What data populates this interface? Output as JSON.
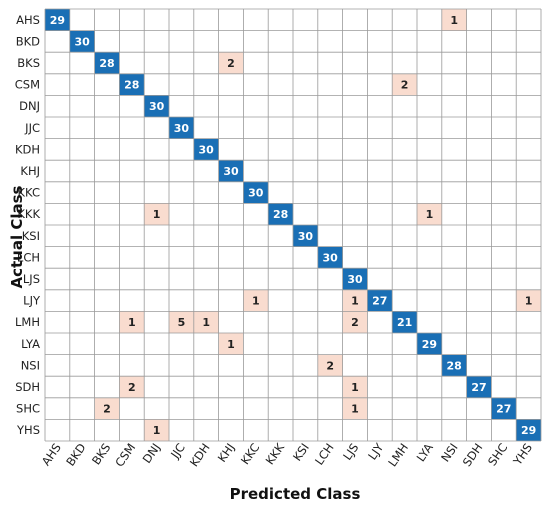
{
  "chart_data": {
    "type": "heatmap",
    "title": "",
    "xlabel": "Predicted Class",
    "ylabel": "Actual Class",
    "classes": [
      "AHS",
      "BKD",
      "BKS",
      "CSM",
      "DNJ",
      "JJC",
      "KDH",
      "KHJ",
      "KKC",
      "KKK",
      "KSI",
      "LCH",
      "LJS",
      "LJY",
      "LMH",
      "LYA",
      "NSI",
      "SDH",
      "SHC",
      "YHS"
    ],
    "matrix": [
      [
        29,
        0,
        0,
        0,
        0,
        0,
        0,
        0,
        0,
        0,
        0,
        0,
        0,
        0,
        0,
        0,
        1,
        0,
        0,
        0
      ],
      [
        0,
        30,
        0,
        0,
        0,
        0,
        0,
        0,
        0,
        0,
        0,
        0,
        0,
        0,
        0,
        0,
        0,
        0,
        0,
        0
      ],
      [
        0,
        0,
        28,
        0,
        0,
        0,
        0,
        2,
        0,
        0,
        0,
        0,
        0,
        0,
        0,
        0,
        0,
        0,
        0,
        0
      ],
      [
        0,
        0,
        0,
        28,
        0,
        0,
        0,
        0,
        0,
        0,
        0,
        0,
        0,
        0,
        2,
        0,
        0,
        0,
        0,
        0
      ],
      [
        0,
        0,
        0,
        0,
        30,
        0,
        0,
        0,
        0,
        0,
        0,
        0,
        0,
        0,
        0,
        0,
        0,
        0,
        0,
        0
      ],
      [
        0,
        0,
        0,
        0,
        0,
        30,
        0,
        0,
        0,
        0,
        0,
        0,
        0,
        0,
        0,
        0,
        0,
        0,
        0,
        0
      ],
      [
        0,
        0,
        0,
        0,
        0,
        0,
        30,
        0,
        0,
        0,
        0,
        0,
        0,
        0,
        0,
        0,
        0,
        0,
        0,
        0
      ],
      [
        0,
        0,
        0,
        0,
        0,
        0,
        0,
        30,
        0,
        0,
        0,
        0,
        0,
        0,
        0,
        0,
        0,
        0,
        0,
        0
      ],
      [
        0,
        0,
        0,
        0,
        0,
        0,
        0,
        0,
        30,
        0,
        0,
        0,
        0,
        0,
        0,
        0,
        0,
        0,
        0,
        0
      ],
      [
        0,
        0,
        0,
        0,
        1,
        0,
        0,
        0,
        0,
        28,
        0,
        0,
        0,
        0,
        0,
        1,
        0,
        0,
        0,
        0
      ],
      [
        0,
        0,
        0,
        0,
        0,
        0,
        0,
        0,
        0,
        0,
        30,
        0,
        0,
        0,
        0,
        0,
        0,
        0,
        0,
        0
      ],
      [
        0,
        0,
        0,
        0,
        0,
        0,
        0,
        0,
        0,
        0,
        0,
        30,
        0,
        0,
        0,
        0,
        0,
        0,
        0,
        0
      ],
      [
        0,
        0,
        0,
        0,
        0,
        0,
        0,
        0,
        0,
        0,
        0,
        0,
        30,
        0,
        0,
        0,
        0,
        0,
        0,
        0
      ],
      [
        0,
        0,
        0,
        0,
        0,
        0,
        0,
        0,
        1,
        0,
        0,
        0,
        1,
        27,
        0,
        0,
        0,
        0,
        0,
        1
      ],
      [
        0,
        0,
        0,
        1,
        0,
        5,
        1,
        0,
        0,
        0,
        0,
        0,
        2,
        0,
        21,
        0,
        0,
        0,
        0,
        0
      ],
      [
        0,
        0,
        0,
        0,
        0,
        0,
        0,
        1,
        0,
        0,
        0,
        0,
        0,
        0,
        0,
        29,
        0,
        0,
        0,
        0
      ],
      [
        0,
        0,
        0,
        0,
        0,
        0,
        0,
        0,
        0,
        0,
        0,
        2,
        0,
        0,
        0,
        0,
        28,
        0,
        0,
        0
      ],
      [
        0,
        0,
        0,
        2,
        0,
        0,
        0,
        0,
        0,
        0,
        0,
        0,
        1,
        0,
        0,
        0,
        0,
        27,
        0,
        0
      ],
      [
        0,
        0,
        2,
        0,
        0,
        0,
        0,
        0,
        0,
        0,
        0,
        0,
        1,
        0,
        0,
        0,
        0,
        0,
        27,
        0
      ],
      [
        0,
        0,
        0,
        0,
        1,
        0,
        0,
        0,
        0,
        0,
        0,
        0,
        0,
        0,
        0,
        0,
        0,
        0,
        0,
        29
      ]
    ],
    "colors": {
      "diagonal": "#1a6fb5",
      "off_diagonal": "#f9dccf",
      "grid": "#9a9a9a",
      "diagonal_text": "#ffffff",
      "off_diagonal_text": "#222222"
    },
    "legend": "none",
    "grid": true
  }
}
